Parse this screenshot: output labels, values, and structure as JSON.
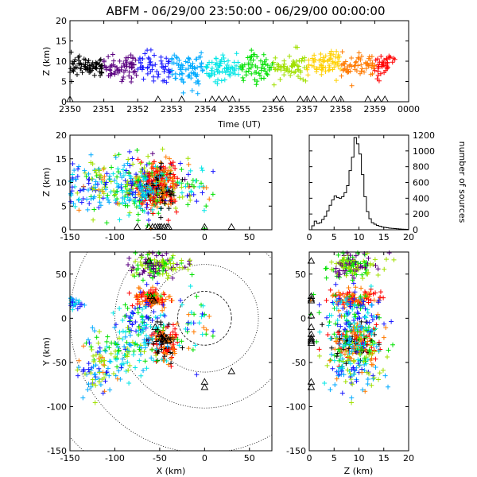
{
  "title": "ABFM - 06/29/00 23:50:00 - 06/29/00 00:00:00",
  "palette": [
    "#000000",
    "#5a0080",
    "#1a1aff",
    "#00aaff",
    "#00e5e5",
    "#00e000",
    "#a0e000",
    "#ffd000",
    "#ff7a00",
    "#ff0000"
  ],
  "chart_data": [
    {
      "id": "time_height",
      "type": "scatter",
      "xlabel": "Time (UT)",
      "ylabel": "Z (km)",
      "xlim": [
        0,
        10
      ],
      "ylim": [
        0,
        20
      ],
      "x_tick_labels": [
        "2350",
        "2351",
        "2352",
        "2353",
        "2354",
        "2355",
        "2356",
        "2357",
        "2358",
        "2359",
        "0000"
      ],
      "y_ticks": [
        0,
        5,
        10,
        15,
        20
      ],
      "marker": "+",
      "color_by": "time",
      "clusters": [
        {
          "x": [
            0.0,
            1.0
          ],
          "z_mean": 8.5,
          "z_sd": 2.2,
          "n": 70
        },
        {
          "x": [
            1.0,
            3.0
          ],
          "z_mean": 8.5,
          "z_sd": 3.0,
          "n": 120
        },
        {
          "x": [
            3.0,
            4.5
          ],
          "z_mean": 8.0,
          "z_sd": 3.5,
          "n": 110
        },
        {
          "x": [
            4.5,
            7.0
          ],
          "z_mean": 8.5,
          "z_sd": 3.0,
          "n": 150
        },
        {
          "x": [
            7.0,
            8.5
          ],
          "z_mean": 9.0,
          "z_sd": 2.5,
          "n": 90
        },
        {
          "x": [
            8.5,
            9.6
          ],
          "z_mean": 9.0,
          "z_sd": 2.5,
          "n": 70
        }
      ],
      "stations_x": [
        0.0,
        2.6,
        3.3,
        4.2,
        4.4,
        4.6,
        4.8,
        6.1,
        6.3,
        6.8,
        7.0,
        7.2,
        7.5,
        7.8,
        8.0,
        8.8,
        9.1,
        9.3
      ]
    },
    {
      "id": "x_height",
      "type": "scatter",
      "xlabel": "",
      "ylabel": "Z (km)",
      "xlim": [
        -150,
        75
      ],
      "ylim": [
        0,
        20
      ],
      "x_ticks": [
        -150,
        -100,
        -50,
        0,
        50
      ],
      "y_ticks": [
        0,
        5,
        10,
        15,
        20
      ],
      "marker": "+",
      "stations_x": [
        -75,
        -62,
        -58,
        -55,
        -52,
        -50,
        -48,
        -45,
        -42,
        -40,
        0,
        30
      ]
    },
    {
      "id": "height_histogram",
      "type": "line",
      "xlabel": "",
      "ylabel": "number of sources",
      "xlim": [
        0,
        20
      ],
      "ylim": [
        0,
        1200
      ],
      "x_ticks": [
        0,
        5,
        10,
        15,
        20
      ],
      "y_ticks": [
        0,
        200,
        400,
        600,
        800,
        1000,
        1200
      ],
      "y_axis_side": "right",
      "step": true,
      "z_km": [
        0,
        0.5,
        1,
        1.5,
        2,
        2.5,
        3,
        3.5,
        4,
        4.5,
        5,
        5.5,
        6,
        6.5,
        7,
        7.5,
        8,
        8.5,
        9,
        9.5,
        10,
        10.5,
        11,
        11.5,
        12,
        12.5,
        13,
        13.5,
        14,
        14.5,
        15,
        15.5,
        16,
        16.5,
        17,
        17.5,
        18,
        18.5,
        19,
        19.5
      ],
      "counts": [
        0,
        50,
        110,
        80,
        90,
        130,
        170,
        240,
        310,
        380,
        430,
        410,
        400,
        420,
        470,
        560,
        750,
        920,
        1170,
        1090,
        960,
        700,
        420,
        230,
        140,
        90,
        70,
        55,
        45,
        35,
        30,
        25,
        20,
        18,
        15,
        12,
        10,
        8,
        6,
        5
      ]
    },
    {
      "id": "plan_view",
      "type": "scatter",
      "xlabel": "X (km)",
      "ylabel": "Y (km)",
      "xlim": [
        -150,
        75
      ],
      "ylim": [
        -150,
        75
      ],
      "x_ticks": [
        -150,
        -100,
        -50,
        0,
        50
      ],
      "y_ticks": [
        -150,
        -100,
        -50,
        0,
        50
      ],
      "marker": "+",
      "range_rings_km": [
        30,
        60,
        100,
        150,
        200
      ],
      "ring_center": [
        0,
        0
      ],
      "stations": [
        [
          -62,
          65
        ],
        [
          -60,
          25
        ],
        [
          -58,
          22
        ],
        [
          -56,
          20
        ],
        [
          -55,
          -10
        ],
        [
          -50,
          -18
        ],
        [
          -48,
          -22
        ],
        [
          -46,
          -24
        ],
        [
          -45,
          -20
        ],
        [
          -44,
          -26
        ],
        [
          -42,
          -22
        ],
        [
          -40,
          -25
        ],
        [
          0,
          -72
        ],
        [
          0,
          -78
        ],
        [
          30,
          -60
        ]
      ],
      "clusters": [
        {
          "x": -55,
          "y": 60,
          "sx": 15,
          "sy": 8,
          "n": 140,
          "colors": [
            1,
            5,
            6
          ]
        },
        {
          "x": -60,
          "y": 22,
          "sx": 10,
          "sy": 5,
          "n": 110,
          "colors": [
            9,
            8
          ]
        },
        {
          "x": -70,
          "y": 0,
          "sx": 12,
          "sy": 15,
          "n": 90,
          "colors": [
            4,
            2,
            5
          ]
        },
        {
          "x": -45,
          "y": -28,
          "sx": 8,
          "sy": 10,
          "n": 130,
          "colors": [
            9,
            8,
            0
          ]
        },
        {
          "x": -85,
          "y": -35,
          "sx": 20,
          "sy": 15,
          "n": 110,
          "colors": [
            5,
            6,
            4,
            3
          ]
        },
        {
          "x": -120,
          "y": -60,
          "sx": 12,
          "sy": 12,
          "n": 70,
          "colors": [
            3,
            2,
            6,
            8
          ]
        },
        {
          "x": -145,
          "y": 18,
          "sx": 4,
          "sy": 3,
          "n": 25,
          "colors": [
            3,
            4,
            2
          ]
        },
        {
          "x": -15,
          "y": -5,
          "sx": 12,
          "sy": 18,
          "n": 35,
          "colors": [
            5,
            4,
            8,
            2
          ]
        }
      ]
    },
    {
      "id": "z_y_view",
      "type": "scatter",
      "xlabel": "Z (km)",
      "ylabel": "",
      "xlim": [
        0,
        20
      ],
      "ylim": [
        -150,
        75
      ],
      "x_ticks": [
        0,
        5,
        10,
        15,
        20
      ],
      "y_ticks": [
        -150,
        -100,
        -50,
        0,
        50
      ],
      "marker": "+",
      "stations_y": [
        65,
        25,
        22,
        20,
        3,
        -10,
        -18,
        -22,
        -24,
        -26,
        -28,
        -72,
        -78
      ]
    }
  ]
}
